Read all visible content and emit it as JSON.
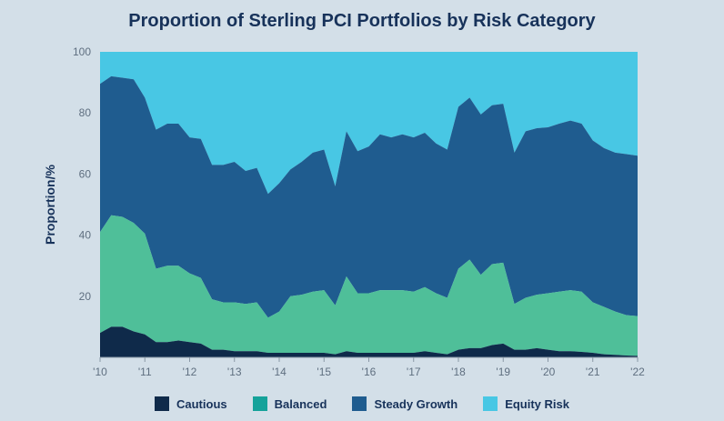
{
  "chart_data": {
    "type": "area",
    "stacked": true,
    "title": "Proportion of Sterling PCI Portfolios by Risk Category",
    "ylabel": "Proportion/%",
    "xlabel": "",
    "xlim": [
      2010,
      2022
    ],
    "ylim": [
      0,
      100
    ],
    "x_tick_labels": [
      "'10",
      "'11",
      "'12",
      "'13",
      "'14",
      "'15",
      "'16",
      "'17",
      "'18",
      "'19",
      "'20",
      "'21",
      "'22"
    ],
    "y_ticks": [
      20,
      40,
      60,
      80,
      100
    ],
    "grid": false,
    "legend_position": "bottom",
    "x": [
      2010,
      2010.25,
      2010.5,
      2010.75,
      2011,
      2011.25,
      2011.5,
      2011.75,
      2012,
      2012.25,
      2012.5,
      2012.75,
      2013,
      2013.25,
      2013.5,
      2013.75,
      2014,
      2014.25,
      2014.5,
      2014.75,
      2015,
      2015.25,
      2015.5,
      2015.75,
      2016,
      2016.25,
      2016.5,
      2016.75,
      2017,
      2017.25,
      2017.5,
      2017.75,
      2018,
      2018.25,
      2018.5,
      2018.75,
      2019,
      2019.25,
      2019.5,
      2019.75,
      2020,
      2020.25,
      2020.5,
      2020.75,
      2021,
      2021.25,
      2021.5,
      2021.75,
      2022
    ],
    "series": [
      {
        "name": "Cautious",
        "color": "#0f2a4a",
        "values": [
          8,
          10,
          10,
          8.5,
          7.5,
          5,
          5,
          5.5,
          5,
          4.5,
          2.5,
          2.5,
          2,
          2,
          2,
          1.5,
          1.5,
          1.5,
          1.5,
          1.5,
          1.5,
          1,
          2,
          1.5,
          1.5,
          1.5,
          1.5,
          1.5,
          1.5,
          2,
          1.5,
          1,
          2.5,
          3,
          3,
          4,
          4.5,
          2.5,
          2.5,
          3,
          2.5,
          2,
          2,
          1.8,
          1.5,
          1,
          0.8,
          0.6,
          0.5
        ]
      },
      {
        "name": "Balanced",
        "color": "#4fbf99",
        "values": [
          41,
          46.5,
          46,
          44,
          40.5,
          29,
          30,
          30,
          27.5,
          26,
          19,
          18,
          18,
          17.5,
          18,
          13,
          15,
          20,
          20.5,
          21.5,
          22,
          17,
          26.5,
          21,
          21,
          22,
          22,
          22,
          21.5,
          23,
          21,
          19.5,
          29,
          32,
          27,
          30.5,
          31,
          17.5,
          19.5,
          20.5,
          21,
          21.5,
          22,
          21.5,
          18,
          16.5,
          15,
          13.8,
          13.5
        ]
      },
      {
        "name": "Steady Growth",
        "color": "#1f5c8f",
        "values": [
          89.5,
          92,
          91.5,
          91,
          85,
          74.5,
          76.5,
          76.5,
          72,
          71.5,
          63,
          63,
          64,
          61,
          62,
          53.5,
          57,
          61.5,
          64,
          67,
          68,
          56,
          74,
          67.5,
          69,
          73,
          72,
          73,
          72,
          73.5,
          70,
          68,
          82,
          85,
          79.5,
          82.5,
          83,
          67,
          74,
          75,
          75.3,
          76.5,
          77.5,
          76.5,
          71,
          68.5,
          67,
          66.5,
          66
        ]
      },
      {
        "name": "Equity Risk",
        "color": "#48c7e4",
        "values": [
          100,
          100,
          100,
          100,
          100,
          100,
          100,
          100,
          100,
          100,
          100,
          100,
          100,
          100,
          100,
          100,
          100,
          100,
          100,
          100,
          100,
          100,
          100,
          100,
          100,
          100,
          100,
          100,
          100,
          100,
          100,
          100,
          100,
          100,
          100,
          100,
          100,
          100,
          100,
          100,
          100,
          100,
          100,
          100,
          100,
          100,
          100,
          100,
          100
        ]
      }
    ],
    "values_are_cumulative": true
  }
}
